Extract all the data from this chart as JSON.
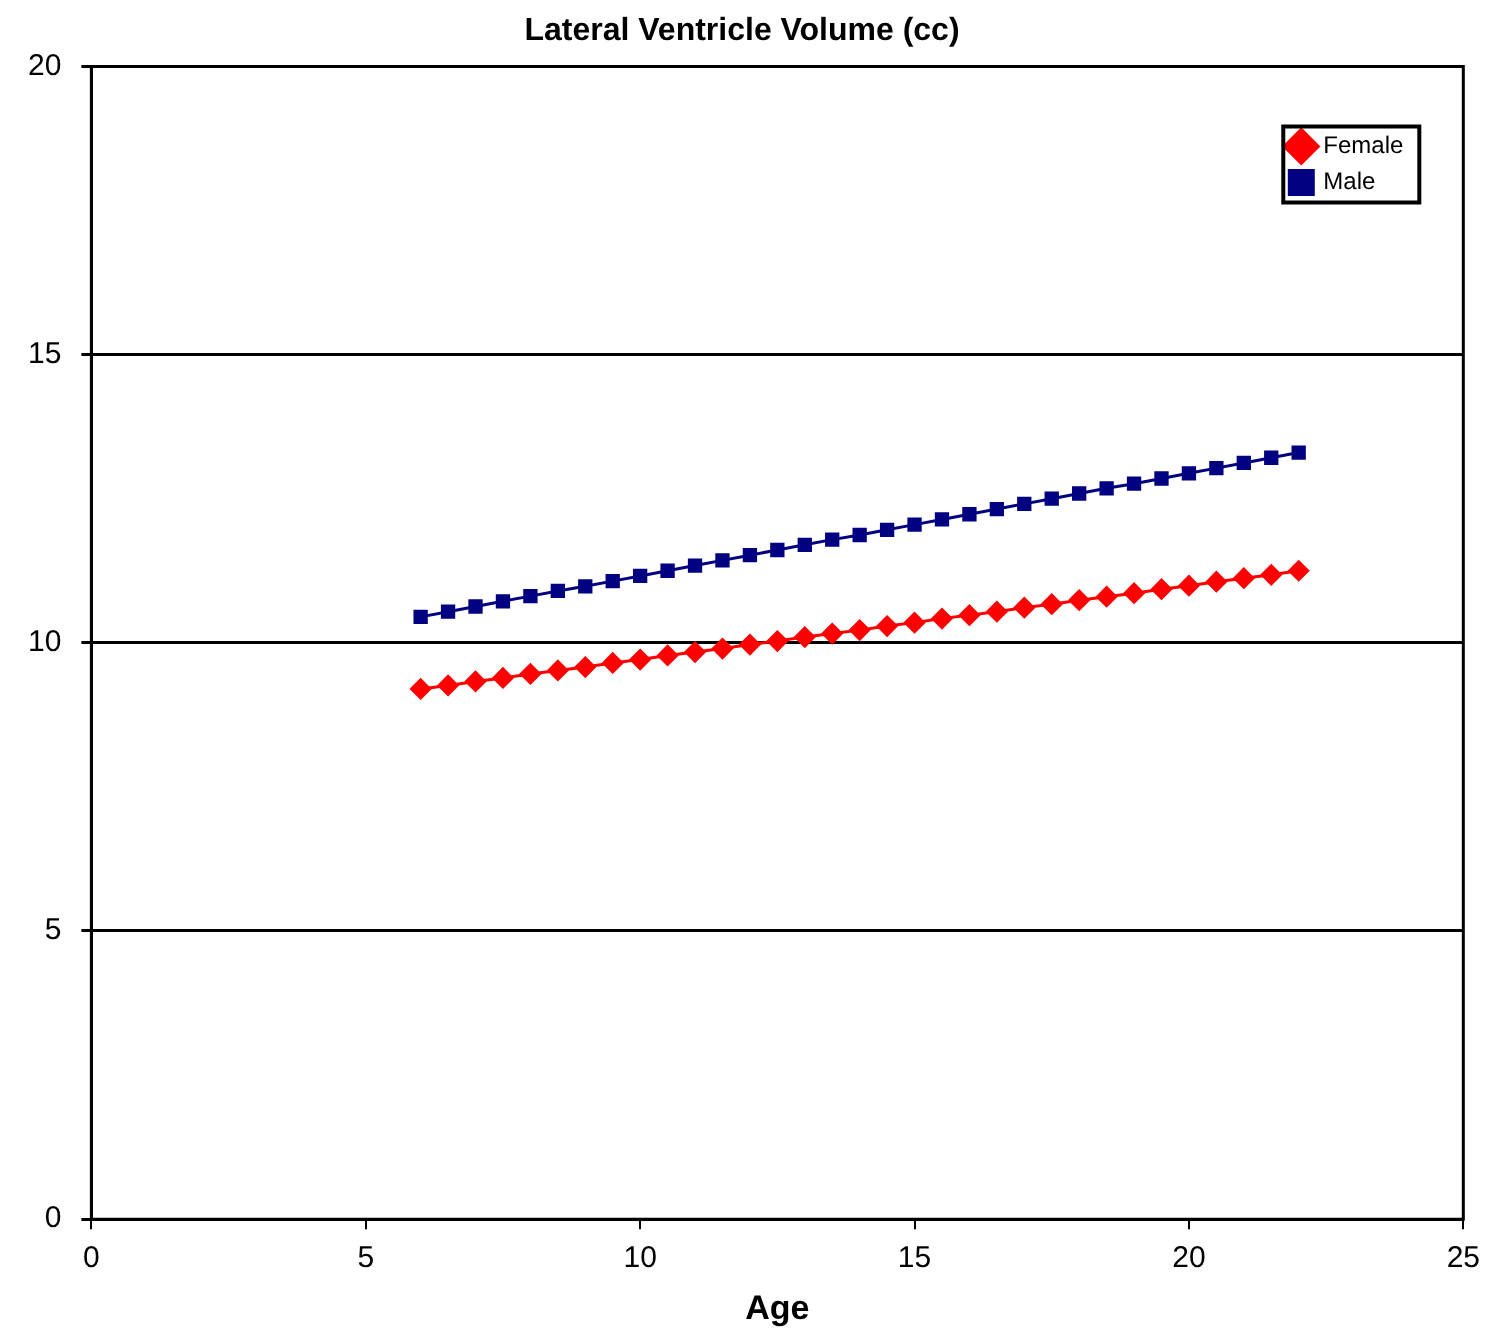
{
  "chart_data": {
    "type": "line",
    "title": "Lateral Ventricle Volume (cc)",
    "xlabel": "Age",
    "x": [
      6,
      6.5,
      7,
      7.5,
      8,
      8.5,
      9,
      9.5,
      10,
      10.5,
      11,
      11.5,
      12,
      12.5,
      13,
      13.5,
      14,
      14.5,
      15,
      15.5,
      16,
      16.5,
      17,
      17.5,
      18,
      18.5,
      19,
      19.5,
      20,
      20.5,
      21,
      21.5,
      22
    ],
    "series": [
      {
        "name": "Female",
        "color": "#ff0000",
        "marker": "diamond",
        "values": [
          9.2,
          9.26,
          9.33,
          9.39,
          9.46,
          9.52,
          9.58,
          9.65,
          9.71,
          9.78,
          9.84,
          9.9,
          9.97,
          10.03,
          10.1,
          10.16,
          10.22,
          10.29,
          10.35,
          10.42,
          10.48,
          10.54,
          10.61,
          10.67,
          10.74,
          10.8,
          10.86,
          10.93,
          10.99,
          11.06,
          11.12,
          11.18,
          11.25
        ]
      },
      {
        "name": "Male",
        "color": "#000080",
        "marker": "square",
        "values": [
          10.45,
          10.54,
          10.63,
          10.72,
          10.81,
          10.9,
          10.98,
          11.07,
          11.16,
          11.25,
          11.34,
          11.43,
          11.52,
          11.61,
          11.7,
          11.79,
          11.87,
          11.96,
          12.05,
          12.14,
          12.23,
          12.32,
          12.41,
          12.5,
          12.59,
          12.68,
          12.76,
          12.85,
          12.94,
          13.03,
          13.12,
          13.21,
          13.3
        ]
      }
    ],
    "xlim": [
      0,
      25
    ],
    "xticks": [
      0,
      5,
      10,
      15,
      20,
      25
    ],
    "ylim": [
      0,
      20
    ],
    "yticks": [
      0,
      5,
      10,
      15,
      20
    ],
    "grid": "y",
    "legend": "top right",
    "line_style": "solid"
  }
}
